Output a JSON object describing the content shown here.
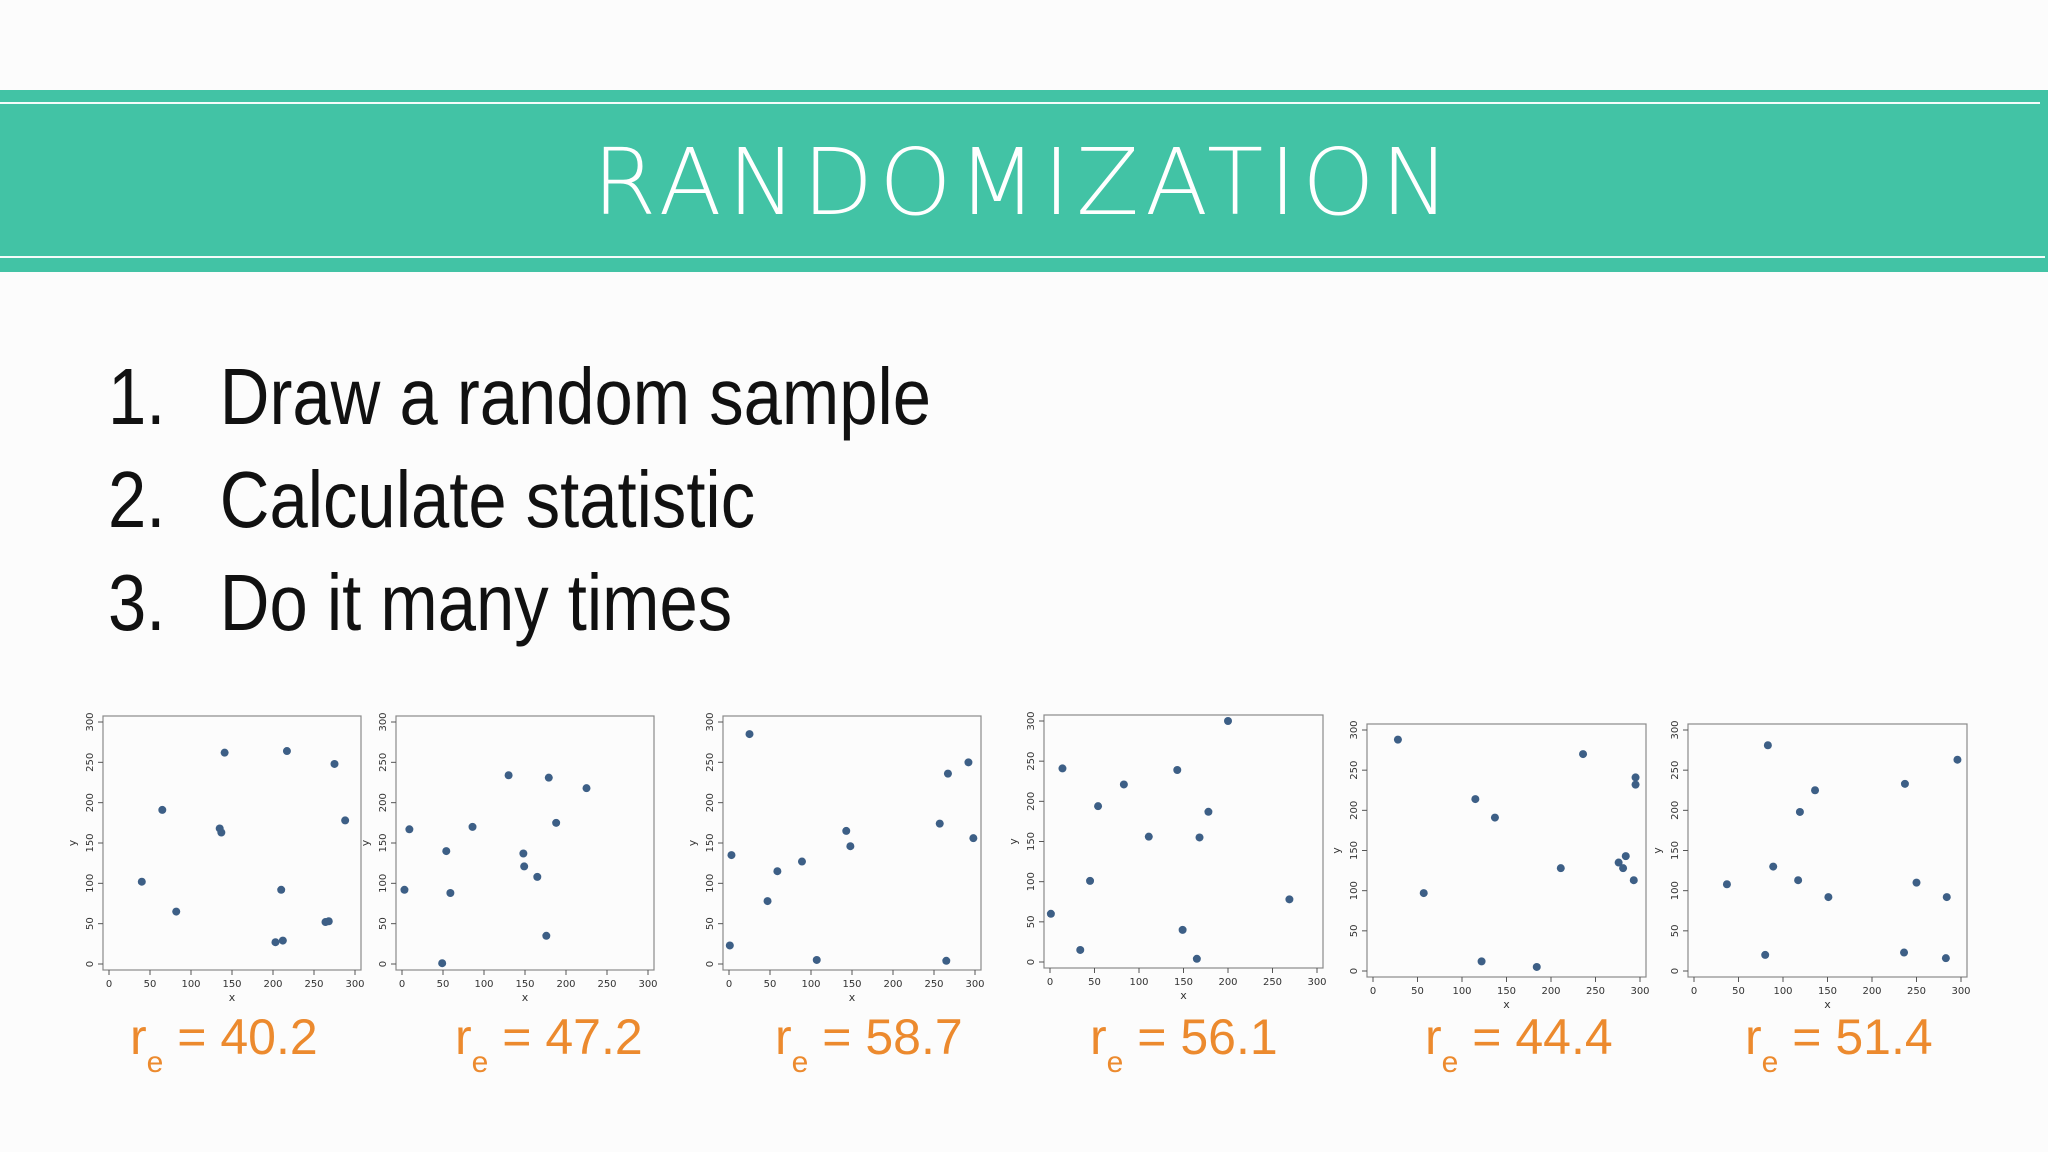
{
  "banner": {
    "title": "RANDOMIZATION"
  },
  "steps": [
    {
      "num": "1.",
      "text": "Draw a random sample"
    },
    {
      "num": "2.",
      "text": "Calculate statistic"
    },
    {
      "num": "3.",
      "text": "Do it many times"
    }
  ],
  "colors": {
    "banner": "#42c3a5",
    "points": "#3d5f86",
    "label": "#ec8a2e"
  },
  "chart_data": [
    {
      "type": "scatter",
      "xlabel": "x",
      "ylabel": "y",
      "xlim": [
        0,
        300
      ],
      "ylim": [
        0,
        300
      ],
      "xticks": [
        0,
        50,
        100,
        150,
        200,
        250,
        300
      ],
      "yticks": [
        0,
        50,
        100,
        150,
        200,
        250,
        300
      ],
      "points": [
        [
          40,
          102
        ],
        [
          65,
          191
        ],
        [
          82,
          65
        ],
        [
          135,
          168
        ],
        [
          137,
          163
        ],
        [
          141,
          262
        ],
        [
          210,
          92
        ],
        [
          212,
          29
        ],
        [
          203,
          27
        ],
        [
          217,
          264
        ],
        [
          264,
          52
        ],
        [
          268,
          53
        ],
        [
          275,
          248
        ],
        [
          288,
          178
        ]
      ],
      "stat_symbol": "r",
      "stat_sub": "e",
      "stat_text": " = 40.2",
      "stat": 40.2
    },
    {
      "type": "scatter",
      "xlabel": "x",
      "ylabel": "y",
      "xlim": [
        0,
        300
      ],
      "ylim": [
        0,
        300
      ],
      "xticks": [
        0,
        50,
        100,
        150,
        200,
        250,
        300
      ],
      "yticks": [
        0,
        50,
        100,
        150,
        200,
        250,
        300
      ],
      "points": [
        [
          3,
          92
        ],
        [
          9,
          167
        ],
        [
          49,
          1
        ],
        [
          54,
          140
        ],
        [
          59,
          88
        ],
        [
          86,
          170
        ],
        [
          130,
          234
        ],
        [
          148,
          137
        ],
        [
          149,
          121
        ],
        [
          165,
          108
        ],
        [
          176,
          35
        ],
        [
          179,
          231
        ],
        [
          188,
          175
        ],
        [
          225,
          218
        ]
      ],
      "stat_symbol": "r",
      "stat_sub": "e",
      "stat_text": " = 47.2",
      "stat": 47.2
    },
    {
      "type": "scatter",
      "xlabel": "x",
      "ylabel": "y",
      "xlim": [
        0,
        300
      ],
      "ylim": [
        0,
        300
      ],
      "xticks": [
        0,
        50,
        100,
        150,
        200,
        250,
        300
      ],
      "yticks": [
        0,
        50,
        100,
        150,
        200,
        250,
        300
      ],
      "points": [
        [
          1,
          23
        ],
        [
          3,
          135
        ],
        [
          25,
          285
        ],
        [
          47,
          78
        ],
        [
          59,
          115
        ],
        [
          89,
          127
        ],
        [
          107,
          5
        ],
        [
          143,
          165
        ],
        [
          148,
          146
        ],
        [
          257,
          174
        ],
        [
          265,
          4
        ],
        [
          267,
          236
        ],
        [
          292,
          250
        ],
        [
          298,
          156
        ]
      ],
      "stat_symbol": "r",
      "stat_sub": "e",
      "stat_text": " = 58.7",
      "stat": 58.7
    },
    {
      "type": "scatter",
      "xlabel": "x",
      "ylabel": "y",
      "xlim": [
        0,
        300
      ],
      "ylim": [
        0,
        300
      ],
      "xticks": [
        0,
        50,
        100,
        150,
        200,
        250,
        300
      ],
      "yticks": [
        0,
        50,
        100,
        150,
        200,
        250,
        300
      ],
      "points": [
        [
          1,
          60
        ],
        [
          14,
          241
        ],
        [
          34,
          15
        ],
        [
          45,
          101
        ],
        [
          54,
          194
        ],
        [
          83,
          221
        ],
        [
          111,
          156
        ],
        [
          143,
          239
        ],
        [
          149,
          40
        ],
        [
          165,
          4
        ],
        [
          168,
          155
        ],
        [
          178,
          187
        ],
        [
          200,
          300
        ],
        [
          269,
          78
        ]
      ],
      "stat_symbol": "r",
      "stat_sub": "e",
      "stat_text": " = 56.1",
      "stat": 56.1
    },
    {
      "type": "scatter",
      "xlabel": "x",
      "ylabel": "y",
      "xlim": [
        0,
        300
      ],
      "ylim": [
        0,
        300
      ],
      "xticks": [
        0,
        50,
        100,
        150,
        200,
        250,
        300
      ],
      "yticks": [
        0,
        50,
        100,
        150,
        200,
        250,
        300
      ],
      "points": [
        [
          28,
          288
        ],
        [
          57,
          97
        ],
        [
          115,
          214
        ],
        [
          122,
          12
        ],
        [
          137,
          191
        ],
        [
          184,
          5
        ],
        [
          211,
          128
        ],
        [
          236,
          270
        ],
        [
          276,
          135
        ],
        [
          281,
          128
        ],
        [
          284,
          143
        ],
        [
          293,
          113
        ],
        [
          295,
          241
        ],
        [
          295,
          232
        ]
      ],
      "stat_symbol": "r",
      "stat_sub": "e",
      "stat_text": " = 44.4",
      "stat": 44.4
    },
    {
      "type": "scatter",
      "xlabel": "x",
      "ylabel": "y",
      "xlim": [
        0,
        300
      ],
      "ylim": [
        0,
        300
      ],
      "xticks": [
        0,
        50,
        100,
        150,
        200,
        250,
        300
      ],
      "yticks": [
        0,
        50,
        100,
        150,
        200,
        250,
        300
      ],
      "points": [
        [
          37,
          108
        ],
        [
          80,
          20
        ],
        [
          83,
          281
        ],
        [
          89,
          130
        ],
        [
          117,
          113
        ],
        [
          119,
          198
        ],
        [
          136,
          225
        ],
        [
          151,
          92
        ],
        [
          237,
          233
        ],
        [
          236,
          23
        ],
        [
          250,
          110
        ],
        [
          284,
          92
        ],
        [
          283,
          16
        ],
        [
          296,
          263
        ]
      ],
      "stat_symbol": "r",
      "stat_sub": "e",
      "stat_text": " = 51.4",
      "stat": 51.4
    }
  ]
}
